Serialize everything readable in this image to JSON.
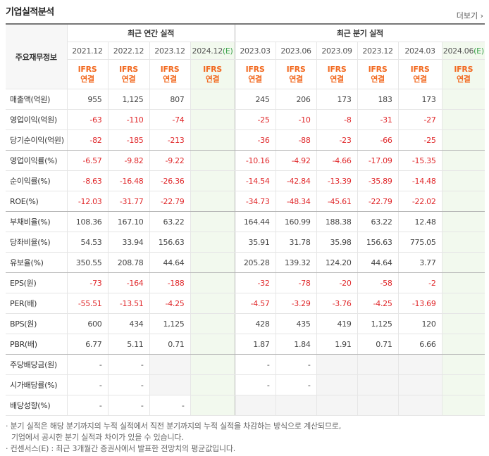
{
  "header": {
    "title": "기업실적분석",
    "more": "더보기"
  },
  "table": {
    "corner": "주요재무정보",
    "groups": [
      {
        "label": "최근 연간 실적",
        "span": 4
      },
      {
        "label": "최근 분기 실적",
        "span": 6
      }
    ],
    "periods": [
      {
        "text": "2021.12"
      },
      {
        "text": "2022.12"
      },
      {
        "text": "2023.12"
      },
      {
        "text": "2024.12",
        "estimate": "(E)"
      },
      {
        "text": "2023.03"
      },
      {
        "text": "2023.06"
      },
      {
        "text": "2023.09"
      },
      {
        "text": "2023.12"
      },
      {
        "text": "2024.03"
      },
      {
        "text": "2024.06",
        "estimate": "(E)"
      }
    ],
    "accounting": [
      {
        "standard": "IFRS",
        "basis": "연결"
      },
      {
        "standard": "IFRS",
        "basis": "연결"
      },
      {
        "standard": "IFRS",
        "basis": "연결"
      },
      {
        "standard": "IFRS",
        "basis": "연결"
      },
      {
        "standard": "IFRS",
        "basis": "연결"
      },
      {
        "standard": "IFRS",
        "basis": "연결"
      },
      {
        "standard": "IFRS",
        "basis": "연결"
      },
      {
        "standard": "IFRS",
        "basis": "연결"
      },
      {
        "standard": "IFRS",
        "basis": "연결"
      },
      {
        "standard": "IFRS",
        "basis": "연결"
      }
    ],
    "rows": [
      {
        "name": "매출액(억원)",
        "values": [
          "955",
          "1,125",
          "807",
          null,
          "245",
          "206",
          "173",
          "183",
          "173",
          null
        ]
      },
      {
        "name": "영업이익(억원)",
        "values": [
          "-63",
          "-110",
          "-74",
          null,
          "-25",
          "-10",
          "-8",
          "-31",
          "-27",
          null
        ]
      },
      {
        "name": "당기순이익(억원)",
        "values": [
          "-82",
          "-185",
          "-213",
          null,
          "-36",
          "-88",
          "-23",
          "-66",
          "-25",
          null
        ],
        "group_end": true
      },
      {
        "name": "영업이익률(%)",
        "values": [
          "-6.57",
          "-9.82",
          "-9.22",
          null,
          "-10.16",
          "-4.92",
          "-4.66",
          "-17.09",
          "-15.35",
          null
        ]
      },
      {
        "name": "순이익률(%)",
        "values": [
          "-8.63",
          "-16.48",
          "-26.36",
          null,
          "-14.54",
          "-42.84",
          "-13.39",
          "-35.89",
          "-14.48",
          null
        ]
      },
      {
        "name": "ROE(%)",
        "values": [
          "-12.03",
          "-31.77",
          "-22.79",
          null,
          "-34.73",
          "-48.34",
          "-45.61",
          "-22.79",
          "-22.02",
          null
        ],
        "group_end": true
      },
      {
        "name": "부채비율(%)",
        "values": [
          "108.36",
          "167.10",
          "63.22",
          null,
          "164.44",
          "160.99",
          "188.38",
          "63.22",
          "12.48",
          null
        ]
      },
      {
        "name": "당좌비율(%)",
        "values": [
          "54.53",
          "33.94",
          "156.63",
          null,
          "35.91",
          "31.78",
          "35.98",
          "156.63",
          "775.05",
          null
        ]
      },
      {
        "name": "유보율(%)",
        "values": [
          "350.55",
          "208.78",
          "44.64",
          null,
          "205.28",
          "139.32",
          "124.20",
          "44.64",
          "3.77",
          null
        ],
        "group_end": true
      },
      {
        "name": "EPS(원)",
        "values": [
          "-73",
          "-164",
          "-188",
          null,
          "-32",
          "-78",
          "-20",
          "-58",
          "-2",
          null
        ]
      },
      {
        "name": "PER(배)",
        "values": [
          "-55.51",
          "-13.51",
          "-4.25",
          null,
          "-4.57",
          "-3.29",
          "-3.76",
          "-4.25",
          "-13.69",
          null
        ]
      },
      {
        "name": "BPS(원)",
        "values": [
          "600",
          "434",
          "1,125",
          null,
          "428",
          "435",
          "419",
          "1,125",
          "120",
          null
        ]
      },
      {
        "name": "PBR(배)",
        "values": [
          "6.77",
          "5.11",
          "0.71",
          null,
          "1.87",
          "1.84",
          "1.91",
          "0.71",
          "6.66",
          null
        ],
        "group_end": true
      },
      {
        "name": "주당배당금(원)",
        "values": [
          "-",
          "-",
          null,
          null,
          "-",
          "-",
          null,
          null,
          null,
          null
        ]
      },
      {
        "name": "시가배당률(%)",
        "values": [
          "-",
          "-",
          null,
          null,
          "-",
          "-",
          null,
          null,
          null,
          null
        ]
      },
      {
        "name": "배당성향(%)",
        "values": [
          "-",
          "-",
          "-",
          null,
          null,
          null,
          null,
          null,
          null,
          null
        ]
      }
    ]
  },
  "notes": [
    {
      "bullet": "·",
      "text": "분기 실적은 해당 분기까지의 누적 실적에서 직전 분기까지의 누적 실적을 차감하는 방식으로 계산되므로,"
    },
    {
      "text": "기업에서 공시한 분기 실적과 차이가 있을 수 있습니다."
    },
    {
      "bullet": "·",
      "text": "컨센서스(E) : 최근 3개월간 증권사에서 발표한 전망치의 평균값입니다."
    }
  ]
}
